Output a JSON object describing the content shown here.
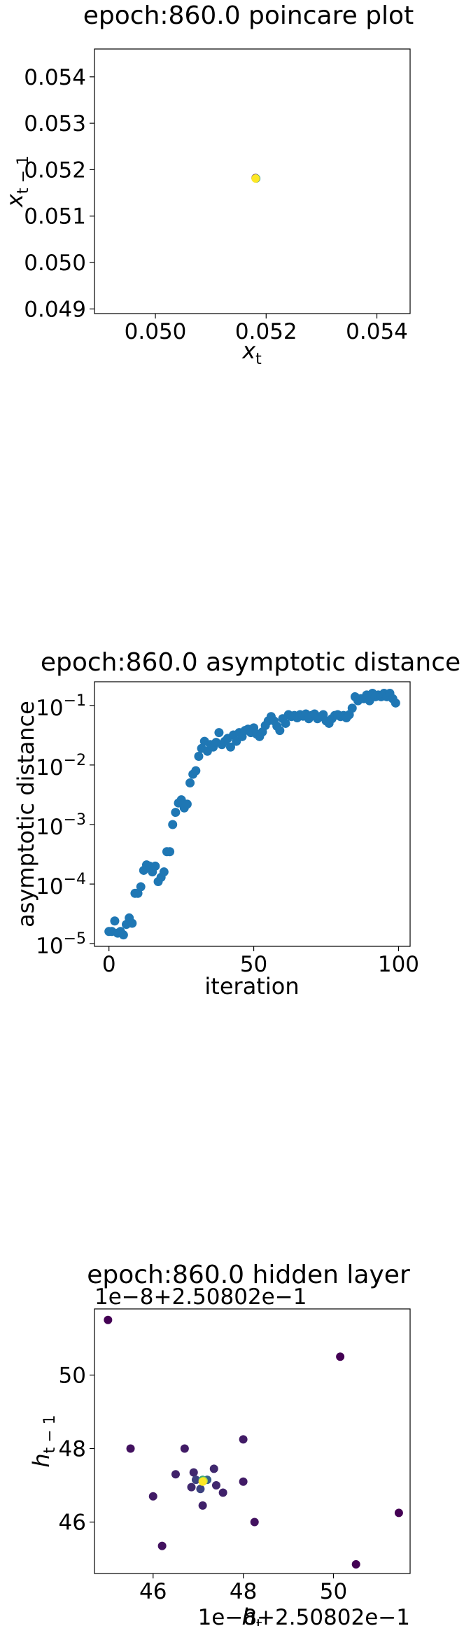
{
  "chart_data": [
    {
      "type": "scatter",
      "title": "epoch:860.0 poincare plot",
      "xlabel": "x_t",
      "ylabel": "x_{t-1}",
      "xlim": [
        0.0489,
        0.0546
      ],
      "ylim": [
        0.0489,
        0.0546
      ],
      "xticks": [
        0.05,
        0.052,
        0.054
      ],
      "yticks": [
        0.049,
        0.05,
        0.051,
        0.052,
        0.053,
        0.054
      ],
      "xticklabels": [
        "0.050",
        "0.052",
        "0.054"
      ],
      "yticklabels": [
        "0.049",
        "0.050",
        "0.051",
        "0.052",
        "0.053",
        "0.054"
      ],
      "colormap": "viridis",
      "points": [
        {
          "x": 0.05181,
          "y": 0.05182,
          "c": 0.0
        },
        {
          "x": 0.05182,
          "y": 0.05181,
          "c": 0.5
        },
        {
          "x": 0.05181,
          "y": 0.05181,
          "c": 1.0
        }
      ]
    },
    {
      "type": "scatter",
      "title": "epoch:860.0 asymptotic distance",
      "xlabel": "iteration",
      "ylabel": "asymptotic distance",
      "yscale": "log",
      "xlim": [
        -5,
        104
      ],
      "ylim": [
        9e-06,
        0.25
      ],
      "xticks": [
        0,
        50,
        100
      ],
      "xticklabels": [
        "0",
        "50",
        "100"
      ],
      "yticks": [
        1e-05,
        0.0001,
        0.001,
        0.01,
        0.1
      ],
      "yticklabels": [
        {
          "base": "10",
          "exp": "−5"
        },
        {
          "base": "10",
          "exp": "−4"
        },
        {
          "base": "10",
          "exp": "−3"
        },
        {
          "base": "10",
          "exp": "−2"
        },
        {
          "base": "10",
          "exp": "−1"
        }
      ],
      "color": "#1f77b4",
      "x": [
        0,
        1,
        2,
        3,
        4,
        5,
        6,
        7,
        8,
        9,
        10,
        11,
        12,
        13,
        14,
        15,
        16,
        17,
        18,
        19,
        20,
        21,
        22,
        23,
        24,
        25,
        26,
        27,
        28,
        29,
        30,
        31,
        32,
        33,
        34,
        35,
        36,
        37,
        38,
        39,
        40,
        41,
        42,
        43,
        44,
        45,
        46,
        47,
        48,
        49,
        50,
        51,
        52,
        53,
        54,
        55,
        56,
        57,
        58,
        59,
        60,
        61,
        62,
        63,
        64,
        65,
        66,
        67,
        68,
        69,
        70,
        71,
        72,
        73,
        74,
        75,
        76,
        77,
        78,
        79,
        80,
        81,
        82,
        83,
        84,
        85,
        86,
        87,
        88,
        89,
        90,
        91,
        92,
        93,
        94,
        95,
        96,
        97,
        98,
        99
      ],
      "y": [
        1.6e-05,
        1.6e-05,
        2.4e-05,
        1.5e-05,
        1.6e-05,
        1.4e-05,
        2.1e-05,
        2.7e-05,
        2.2e-05,
        7e-05,
        7e-05,
        9e-05,
        0.00017,
        0.00021,
        0.0002,
        0.00016,
        0.0002,
        0.00011,
        0.00013,
        0.00016,
        0.00035,
        0.00035,
        0.001,
        0.0016,
        0.0023,
        0.0026,
        0.0019,
        0.0022,
        0.005,
        0.007,
        0.008,
        0.014,
        0.019,
        0.025,
        0.017,
        0.022,
        0.02,
        0.024,
        0.035,
        0.022,
        0.025,
        0.028,
        0.02,
        0.032,
        0.025,
        0.035,
        0.03,
        0.038,
        0.04,
        0.035,
        0.042,
        0.033,
        0.03,
        0.036,
        0.046,
        0.055,
        0.065,
        0.055,
        0.045,
        0.038,
        0.06,
        0.05,
        0.07,
        0.065,
        0.068,
        0.062,
        0.07,
        0.066,
        0.072,
        0.06,
        0.068,
        0.072,
        0.06,
        0.065,
        0.07,
        0.055,
        0.05,
        0.06,
        0.068,
        0.07,
        0.065,
        0.068,
        0.062,
        0.07,
        0.09,
        0.14,
        0.12,
        0.13,
        0.13,
        0.15,
        0.12,
        0.16,
        0.14,
        0.15,
        0.14,
        0.16,
        0.14,
        0.16,
        0.13,
        0.11
      ]
    },
    {
      "type": "scatter",
      "title": "epoch:860.0 hidden layer",
      "xlabel": "h_t",
      "ylabel": "h_{t-1}",
      "x_offset": "1e−8+2.50802e−1",
      "y_offset": "1e−8+2.50802e−1",
      "xlim": [
        44.7,
        51.7
      ],
      "ylim": [
        44.6,
        51.8
      ],
      "xticks": [
        46,
        48,
        50
      ],
      "yticks": [
        46,
        48,
        50
      ],
      "xticklabels": [
        "46",
        "48",
        "50"
      ],
      "yticklabels": [
        "46",
        "48",
        "50"
      ],
      "colormap": "viridis",
      "points": [
        {
          "x": 45.0,
          "y": 51.5,
          "c": 0.0
        },
        {
          "x": 45.5,
          "y": 48.0,
          "c": 0.05
        },
        {
          "x": 46.0,
          "y": 46.7,
          "c": 0.08
        },
        {
          "x": 46.2,
          "y": 45.35,
          "c": 0.05
        },
        {
          "x": 46.5,
          "y": 47.3,
          "c": 0.1
        },
        {
          "x": 46.7,
          "y": 48.0,
          "c": 0.08
        },
        {
          "x": 46.85,
          "y": 46.95,
          "c": 0.12
        },
        {
          "x": 46.9,
          "y": 47.35,
          "c": 0.12
        },
        {
          "x": 46.95,
          "y": 47.15,
          "c": 0.2
        },
        {
          "x": 47.05,
          "y": 46.9,
          "c": 0.2
        },
        {
          "x": 47.1,
          "y": 46.45,
          "c": 0.1
        },
        {
          "x": 47.2,
          "y": 47.15,
          "c": 0.3
        },
        {
          "x": 47.35,
          "y": 47.45,
          "c": 0.12
        },
        {
          "x": 47.4,
          "y": 47.0,
          "c": 0.12
        },
        {
          "x": 47.55,
          "y": 46.8,
          "c": 0.1
        },
        {
          "x": 48.0,
          "y": 48.25,
          "c": 0.08
        },
        {
          "x": 48.0,
          "y": 47.1,
          "c": 0.08
        },
        {
          "x": 48.25,
          "y": 46.0,
          "c": 0.05
        },
        {
          "x": 50.15,
          "y": 50.5,
          "c": 0.0
        },
        {
          "x": 50.5,
          "y": 44.85,
          "c": 0.0
        },
        {
          "x": 51.45,
          "y": 46.25,
          "c": 0.0
        },
        {
          "x": 47.1,
          "y": 47.15,
          "c": 0.6
        },
        {
          "x": 47.12,
          "y": 47.12,
          "c": 0.85
        },
        {
          "x": 47.1,
          "y": 47.1,
          "c": 1.0
        }
      ]
    }
  ]
}
